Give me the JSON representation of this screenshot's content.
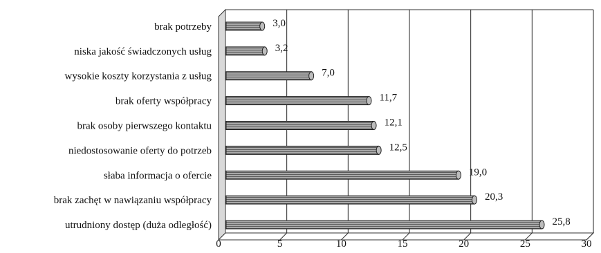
{
  "chart_data": {
    "type": "bar",
    "orientation": "horizontal",
    "categories": [
      "brak potrzeby",
      "niska jakość świadczonych usług",
      "wysokie koszty korzystania z usług",
      "brak oferty współpracy",
      "brak osoby pierwszego kontaktu",
      "niedostosowanie oferty do potrzeb",
      "słaba informacja o ofercie",
      "brak zachęt w nawiązaniu współpracy",
      "utrudniony dostęp (duża odległość)"
    ],
    "values": [
      3.0,
      3.2,
      7.0,
      11.7,
      12.1,
      12.5,
      19.0,
      20.3,
      25.8
    ],
    "value_labels": [
      "3,0",
      "3,2",
      "7,0",
      "11,7",
      "12,1",
      "12,5",
      "19,0",
      "20,3",
      "25,8"
    ],
    "xlim": [
      0,
      30
    ],
    "xticks": [
      "0",
      "5",
      "10",
      "15",
      "20",
      "25",
      "30"
    ],
    "title": "",
    "xlabel": "",
    "ylabel": "",
    "grid": "vertical",
    "legend": "none",
    "colors": {
      "bar": "#9a9a9a",
      "bar_stripe": "#5a5a5a",
      "wall": "#d9d9d9",
      "grid": "#222222"
    }
  }
}
